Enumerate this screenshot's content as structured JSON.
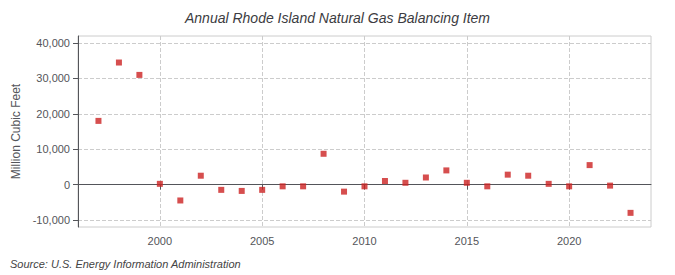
{
  "chart_data": {
    "type": "scatter",
    "title": "Annual Rhode Island Natural Gas Balancing Item",
    "ylabel": "Million Cubic Feet",
    "annotation": "Source: U.S. Energy Information Administration",
    "x": [
      1997,
      1998,
      1999,
      2000,
      2001,
      2002,
      2003,
      2004,
      2005,
      2006,
      2007,
      2008,
      2009,
      2010,
      2011,
      2012,
      2013,
      2014,
      2015,
      2016,
      2017,
      2018,
      2019,
      2020,
      2021,
      2022,
      2023
    ],
    "values": [
      18000,
      34500,
      31000,
      200,
      -4500,
      2500,
      -1500,
      -1800,
      -1500,
      -500,
      -500,
      8700,
      -2000,
      -500,
      1000,
      500,
      2000,
      4000,
      500,
      -500,
      2800,
      2500,
      200,
      -500,
      5500,
      -300,
      -8000
    ],
    "color": "#cc2222",
    "marker": "square",
    "xlim": [
      1996,
      2024
    ],
    "xticks": [
      2000,
      2005,
      2010,
      2015,
      2020
    ],
    "ylim": [
      -12000,
      42000
    ],
    "yticks": [
      {
        "value": -10000,
        "label": "-10,000"
      },
      0,
      {
        "value": 10000,
        "label": "10,000"
      },
      {
        "value": 20000,
        "label": "20,000"
      },
      {
        "value": 30000,
        "label": "30,000"
      },
      {
        "value": 40000,
        "label": "40,000"
      }
    ],
    "grid": true
  }
}
